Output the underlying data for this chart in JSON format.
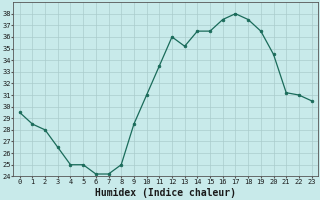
{
  "x": [
    0,
    1,
    2,
    3,
    4,
    5,
    6,
    7,
    8,
    9,
    10,
    11,
    12,
    13,
    14,
    15,
    16,
    17,
    18,
    19,
    20,
    21,
    22,
    23
  ],
  "y": [
    29.5,
    28.5,
    28.0,
    26.5,
    25.0,
    25.0,
    24.2,
    24.2,
    25.0,
    28.5,
    31.0,
    33.5,
    36.0,
    35.2,
    36.5,
    36.5,
    37.5,
    38.0,
    37.5,
    36.5,
    34.5,
    31.2,
    31.0,
    30.5
  ],
  "line_color": "#1a6b5a",
  "marker": "o",
  "marker_size": 2.0,
  "linewidth": 0.9,
  "background_color": "#c8eaea",
  "grid_color": "#aacccc",
  "xlabel": "Humidex (Indice chaleur)",
  "ylim": [
    24,
    39
  ],
  "xlim": [
    -0.5,
    23.5
  ],
  "yticks": [
    24,
    25,
    26,
    27,
    28,
    29,
    30,
    31,
    32,
    33,
    34,
    35,
    36,
    37,
    38
  ],
  "xticks": [
    0,
    1,
    2,
    3,
    4,
    5,
    6,
    7,
    8,
    9,
    10,
    11,
    12,
    13,
    14,
    15,
    16,
    17,
    18,
    19,
    20,
    21,
    22,
    23
  ],
  "tick_fontsize": 5.0,
  "xlabel_fontsize": 7.0,
  "tick_color": "#1a1a1a",
  "spine_color": "#555555",
  "grid_linewidth": 0.5
}
